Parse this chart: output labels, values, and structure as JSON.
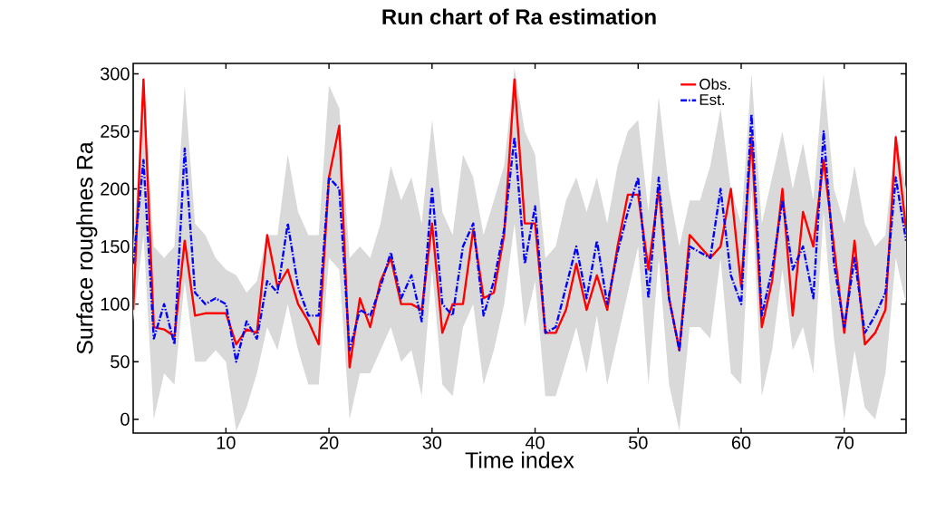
{
  "chart_data": {
    "type": "line",
    "title": "Run chart of Ra estimation",
    "xlabel": "Time index",
    "ylabel": "Surface roughnes Ra",
    "x": [
      1,
      2,
      3,
      4,
      5,
      6,
      7,
      8,
      9,
      10,
      11,
      12,
      13,
      14,
      15,
      16,
      17,
      18,
      19,
      20,
      21,
      22,
      23,
      24,
      25,
      26,
      27,
      28,
      29,
      30,
      31,
      32,
      33,
      34,
      35,
      36,
      37,
      38,
      39,
      40,
      41,
      42,
      43,
      44,
      45,
      46,
      47,
      48,
      49,
      50,
      51,
      52,
      53,
      54,
      55,
      56,
      57,
      58,
      59,
      60,
      61,
      62,
      63,
      64,
      65,
      66,
      67,
      68,
      69,
      70,
      71,
      72,
      73,
      74,
      75,
      76
    ],
    "series": [
      {
        "name": "Obs.",
        "color": "#ff0000",
        "line_style": "solid",
        "values": [
          95,
          295,
          80,
          78,
          72,
          155,
          90,
          92,
          92,
          92,
          65,
          78,
          75,
          160,
          115,
          130,
          100,
          85,
          65,
          210,
          255,
          45,
          105,
          80,
          120,
          140,
          100,
          100,
          95,
          170,
          75,
          100,
          100,
          165,
          105,
          110,
          160,
          295,
          170,
          170,
          75,
          75,
          95,
          135,
          95,
          125,
          95,
          150,
          195,
          195,
          130,
          200,
          105,
          60,
          160,
          150,
          140,
          150,
          200,
          115,
          245,
          80,
          120,
          200,
          90,
          180,
          150,
          225,
          150,
          75,
          155,
          65,
          75,
          95,
          245,
          165
        ]
      },
      {
        "name": "Est.",
        "color": "#0000ff",
        "line_style": "dashed",
        "values": [
          135,
          225,
          70,
          100,
          65,
          235,
          110,
          100,
          105,
          100,
          50,
          85,
          70,
          120,
          110,
          170,
          115,
          90,
          90,
          210,
          200,
          60,
          95,
          90,
          115,
          145,
          105,
          125,
          85,
          200,
          100,
          90,
          150,
          170,
          90,
          120,
          165,
          245,
          135,
          185,
          75,
          80,
          115,
          150,
          105,
          155,
          100,
          145,
          180,
          210,
          105,
          210,
          105,
          60,
          150,
          145,
          140,
          200,
          125,
          100,
          265,
          90,
          130,
          190,
          130,
          150,
          105,
          250,
          135,
          80,
          140,
          75,
          90,
          110,
          210,
          155
        ],
        "upper": [
          150,
          290,
          150,
          140,
          150,
          290,
          170,
          160,
          140,
          130,
          125,
          110,
          120,
          160,
          160,
          230,
          180,
          160,
          160,
          290,
          270,
          140,
          150,
          140,
          170,
          220,
          190,
          210,
          170,
          260,
          180,
          160,
          230,
          210,
          160,
          190,
          220,
          305,
          250,
          230,
          140,
          150,
          190,
          210,
          180,
          210,
          170,
          220,
          250,
          260,
          180,
          280,
          200,
          150,
          190,
          190,
          220,
          270,
          200,
          170,
          300,
          170,
          210,
          250,
          200,
          240,
          190,
          300,
          200,
          170,
          220,
          170,
          150,
          160,
          250,
          200
        ],
        "lower": [
          85,
          160,
          0,
          40,
          30,
          120,
          50,
          50,
          60,
          50,
          -10,
          10,
          40,
          80,
          60,
          100,
          60,
          30,
          30,
          140,
          130,
          0,
          40,
          40,
          60,
          80,
          50,
          60,
          20,
          130,
          30,
          20,
          80,
          100,
          30,
          60,
          100,
          170,
          80,
          120,
          20,
          20,
          50,
          80,
          40,
          90,
          30,
          70,
          110,
          150,
          30,
          140,
          30,
          -10,
          80,
          80,
          70,
          140,
          40,
          30,
          200,
          20,
          60,
          130,
          60,
          80,
          40,
          180,
          70,
          0,
          60,
          10,
          0,
          40,
          140,
          100
        ]
      }
    ],
    "xlim": [
      1,
      76
    ],
    "ylim": [
      -12,
      309
    ],
    "xticks": [
      10,
      20,
      30,
      40,
      50,
      60,
      70
    ],
    "yticks": [
      0,
      50,
      100,
      150,
      200,
      250,
      300
    ],
    "grid": false,
    "legend": "top right",
    "marker": "none"
  }
}
